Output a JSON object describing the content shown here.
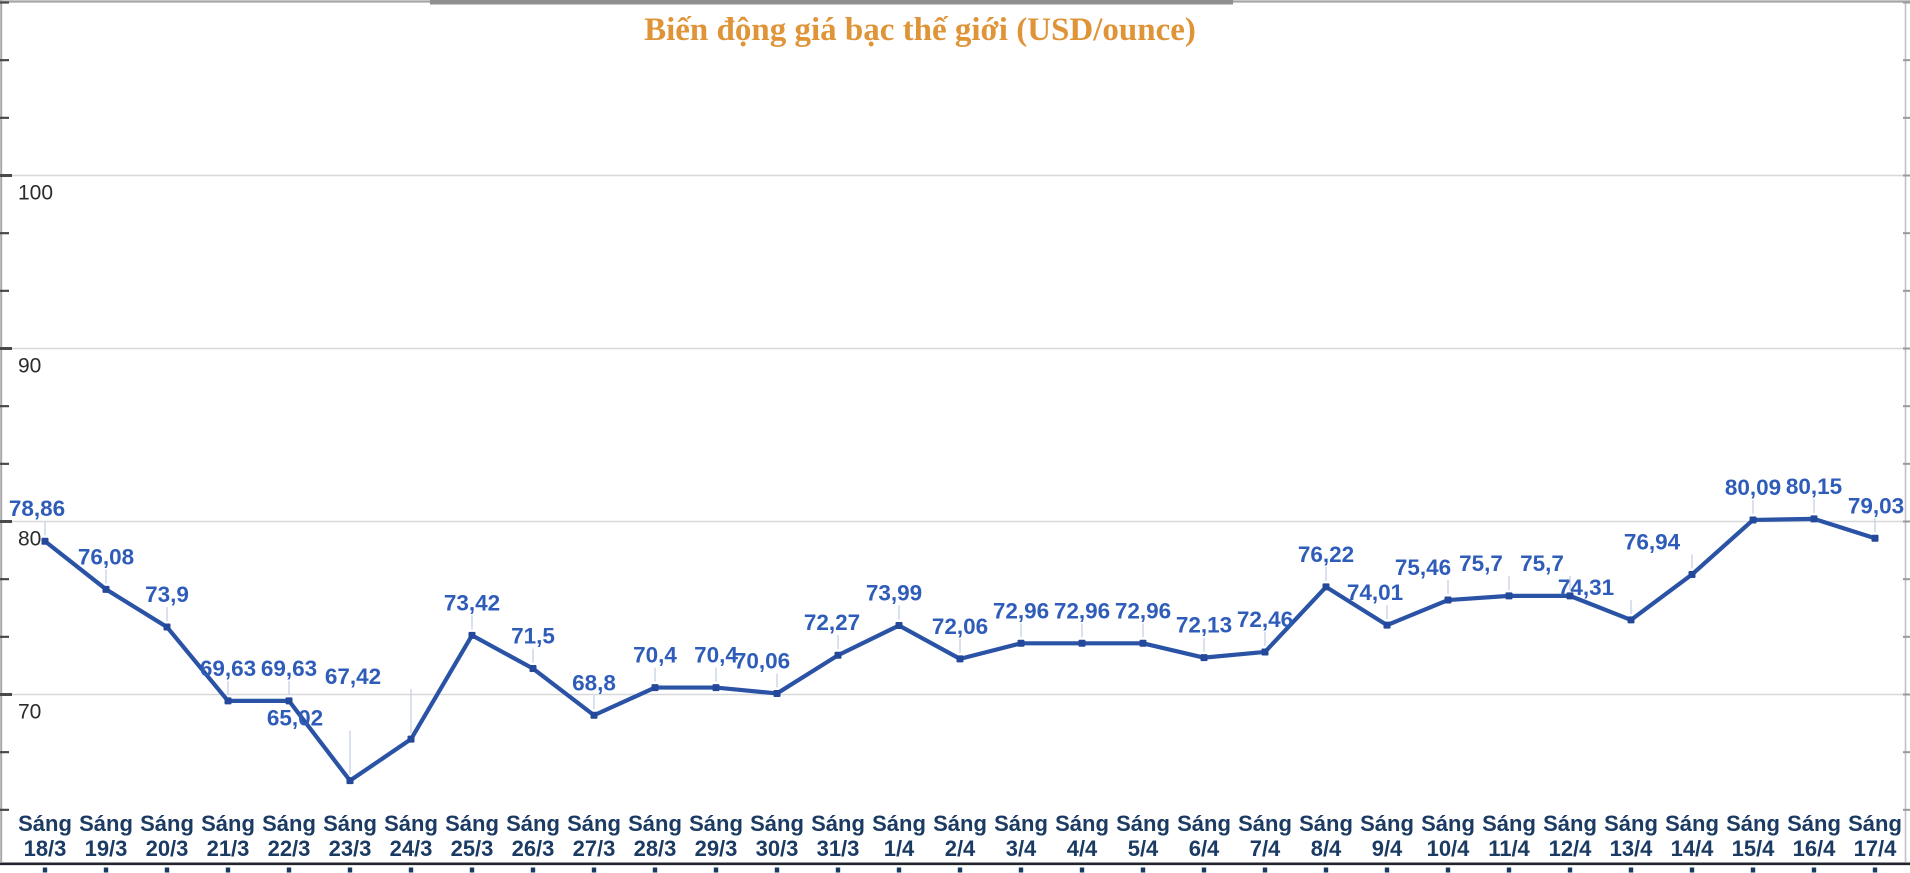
{
  "title": {
    "text": "Biến động giá bạc thế giới (USD/ounce)"
  },
  "colors": {
    "title": "#df9438",
    "series_line": "#2a53a6",
    "series_marker": "#24499a",
    "point_label": "#2e5cb8",
    "x_axis_label": "#1b3b63",
    "y_axis_label": "#2b2b2b",
    "gridline": "#d8d8d8",
    "border": "#a8a8a8",
    "bottom_axis": "#23252e",
    "leader_line": "#c9d3e6"
  },
  "chart_data": {
    "type": "line",
    "title": "Biến động giá bạc thế giới (USD/ounce)",
    "categories": [
      "Sáng 18/3",
      "Sáng 19/3",
      "Sáng 20/3",
      "Sáng 21/3",
      "Sáng 22/3",
      "Sáng 23/3",
      "Sáng 24/3",
      "Sáng 25/3",
      "Sáng 26/3",
      "Sáng 27/3",
      "Sáng 28/3",
      "Sáng 29/3",
      "Sáng 30/3",
      "Sáng 31/3",
      "Sáng 1/4",
      "Sáng 2/4",
      "Sáng 3/4",
      "Sáng 4/4",
      "Sáng 5/4",
      "Sáng 6/4",
      "Sáng 7/4",
      "Sáng 8/4",
      "Sáng 9/4",
      "Sáng 10/4",
      "Sáng 11/4",
      "Sáng 12/4",
      "Sáng 13/4",
      "Sáng 14/4",
      "Sáng 15/4",
      "Sáng 16/4",
      "Sáng 17/4"
    ],
    "values": [
      78.86,
      76.08,
      73.9,
      69.63,
      69.63,
      65.02,
      67.42,
      73.42,
      71.5,
      68.8,
      70.4,
      70.4,
      70.06,
      72.27,
      73.99,
      72.06,
      72.96,
      72.96,
      72.96,
      72.13,
      72.46,
      76.22,
      74.01,
      75.46,
      75.7,
      75.7,
      74.31,
      76.94,
      80.09,
      80.15,
      79.03
    ],
    "point_labels": [
      "78,86",
      "76,08",
      "73,9",
      "69,63",
      "69,63",
      "65,02",
      "67,42",
      "73,42",
      "71,5",
      "68,8",
      "70,4",
      "70,4",
      "70,06",
      "72,27",
      "73,99",
      "72,06",
      "72,96",
      "72,96",
      "72,96",
      "72,13",
      "72,46",
      "76,22",
      "74,01",
      "75,46",
      "75,7",
      "75,7",
      "74,31",
      "76,94",
      "80,09",
      "80,15",
      "79,03"
    ],
    "xlabel": "",
    "ylabel": "",
    "y_ticks": [
      100,
      90,
      80,
      70
    ],
    "y_tick_labels": [
      "100",
      "90",
      "80",
      "70"
    ],
    "ylim_visible": [
      60,
      110
    ],
    "grid": "horizontal",
    "legend_position": "none"
  }
}
